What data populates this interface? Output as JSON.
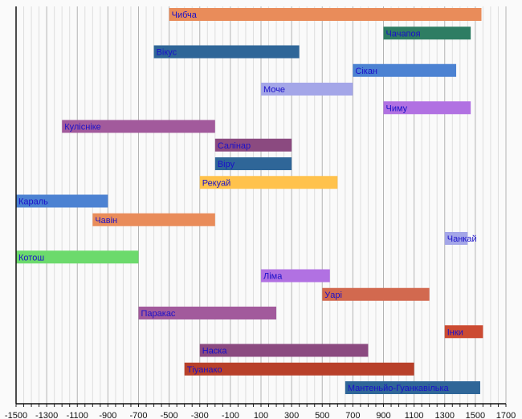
{
  "chart_data": {
    "type": "bar",
    "orientation": "horizontal-range",
    "title": "",
    "xlabel": "",
    "ylabel": "",
    "xlim": [
      -1500,
      1700
    ],
    "major_tick_step": 200,
    "minor_grid_step": 50,
    "grid": true,
    "x_tick_labels": [
      "-1500",
      "-1300",
      "-1100",
      "-900",
      "-700",
      "-500",
      "-300",
      "-100",
      "100",
      "300",
      "500",
      "700",
      "900",
      "1100",
      "1300",
      "1500",
      "1700"
    ],
    "series": [
      {
        "name": "Чибча",
        "start": -500,
        "end": 1540,
        "color": "#e98c5a"
      },
      {
        "name": "Чачапоя",
        "start": 900,
        "end": 1470,
        "color": "#2e7d63"
      },
      {
        "name": "Вікус",
        "start": -600,
        "end": 350,
        "color": "#2f6698"
      },
      {
        "name": "Сікан",
        "start": 700,
        "end": 1375,
        "color": "#4c82d2"
      },
      {
        "name": "Моче",
        "start": 100,
        "end": 700,
        "color": "#a4a6e8"
      },
      {
        "name": "Чиму",
        "start": 900,
        "end": 1470,
        "color": "#b171e2"
      },
      {
        "name": "Кулісніке",
        "start": -1200,
        "end": -200,
        "color": "#a25a9c"
      },
      {
        "name": "Салінар",
        "start": -200,
        "end": 300,
        "color": "#8b4a80"
      },
      {
        "name": "Віру",
        "start": -200,
        "end": 300,
        "color": "#2f6698"
      },
      {
        "name": "Рекуай",
        "start": -300,
        "end": 600,
        "color": "#ffc24c"
      },
      {
        "name": "Караль",
        "start": -1500,
        "end": -900,
        "color": "#4c82d2"
      },
      {
        "name": "Чавін",
        "start": -1000,
        "end": -200,
        "color": "#e98c5a"
      },
      {
        "name": "Чанкай",
        "start": 1300,
        "end": 1450,
        "color": "#a4a6e8"
      },
      {
        "name": "Котош",
        "start": -1500,
        "end": -700,
        "color": "#6cda6c"
      },
      {
        "name": "Ліма",
        "start": 100,
        "end": 550,
        "color": "#b171e2"
      },
      {
        "name": "Уарі",
        "start": 500,
        "end": 1200,
        "color": "#d2694f"
      },
      {
        "name": "Паракас",
        "start": -700,
        "end": 200,
        "color": "#a25a9c"
      },
      {
        "name": "Інки",
        "start": 1300,
        "end": 1550,
        "color": "#cc4b32"
      },
      {
        "name": "Наска",
        "start": -300,
        "end": 800,
        "color": "#8b4a80"
      },
      {
        "name": "Тіуанако",
        "start": -400,
        "end": 1100,
        "color": "#b8402a"
      },
      {
        "name": "Мантеньйо-Гуанкавілька",
        "start": 650,
        "end": 1532,
        "color": "#2f6698"
      }
    ]
  }
}
